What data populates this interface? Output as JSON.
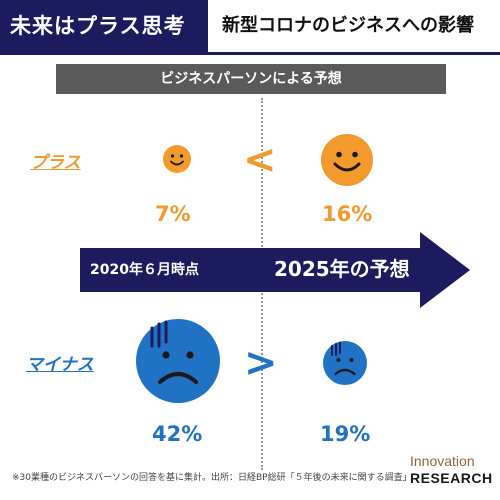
{
  "header": {
    "brand_title": "未来はプラス思考",
    "topic_title": "新型コロナのビジネスへの影響"
  },
  "subtitle": "ビジネスパーソンによる予想",
  "rows": {
    "plus": {
      "label": "プラス",
      "comparison_sign": "<",
      "value_2020": "7%",
      "value_2025": "16%",
      "color": "#f39a2c"
    },
    "minus": {
      "label": "マイナス",
      "comparison_sign": ">",
      "value_2020": "42%",
      "value_2025": "19%",
      "color": "#1f72c4"
    }
  },
  "timeline": {
    "from_label": "2020年６月時点",
    "to_label": "2025年の予想",
    "color": "#1c1b5e"
  },
  "icons": {
    "plus_2020": "smiley-face-icon",
    "plus_2025": "smiley-face-icon",
    "minus_2020": "sad-face-icon",
    "minus_2025": "sad-face-icon"
  },
  "footnote": "※30業種のビジネスパーソンの回答を基に集計。出所：日経BP総研「５年後の未来に関する調査」",
  "logo": {
    "line1": "Innovation",
    "line2": "RESEARCH"
  }
}
